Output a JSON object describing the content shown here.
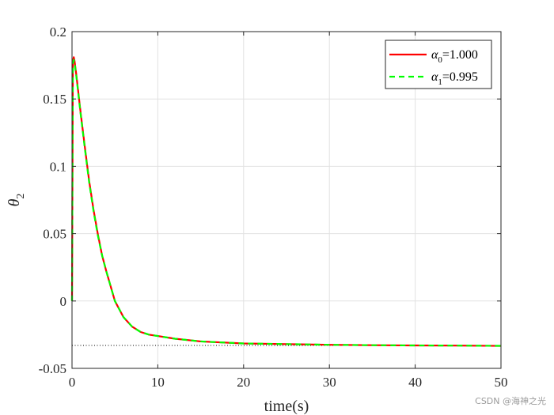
{
  "chart_data": {
    "type": "line",
    "title": "",
    "xlabel": "time(s)",
    "ylabel": "θ",
    "ylabel_sub": "2",
    "xlim": [
      0,
      50
    ],
    "ylim": [
      -0.05,
      0.2
    ],
    "xticks": [
      0,
      10,
      20,
      30,
      40,
      50
    ],
    "yticks": [
      -0.05,
      0,
      0.05,
      0.1,
      0.15,
      0.2
    ],
    "xtick_labels": [
      "0",
      "10",
      "20",
      "30",
      "40",
      "50"
    ],
    "ytick_labels": [
      "-0.05",
      "0",
      "0.05",
      "0.1",
      "0.15",
      "0.2"
    ],
    "grid": true,
    "legend_position": "top-right",
    "reference_line": {
      "y": -0.033,
      "style": "dotted",
      "color": "#000000"
    },
    "series": [
      {
        "name": "α",
        "sub": "0",
        "suffix": "=1.000",
        "color": "#ff0000",
        "style": "solid",
        "x": [
          0,
          0.1,
          0.2,
          0.3,
          0.5,
          1,
          1.5,
          2,
          2.5,
          3,
          3.5,
          4,
          5,
          6,
          7,
          8,
          9,
          10,
          12,
          15,
          20,
          25,
          30,
          35,
          40,
          45,
          50
        ],
        "y": [
          0,
          0.178,
          0.181,
          0.178,
          0.168,
          0.14,
          0.114,
          0.089,
          0.068,
          0.05,
          0.034,
          0.022,
          0.0,
          -0.012,
          -0.019,
          -0.023,
          -0.025,
          -0.026,
          -0.028,
          -0.03,
          -0.0315,
          -0.032,
          -0.0325,
          -0.0328,
          -0.033,
          -0.0331,
          -0.0333
        ]
      },
      {
        "name": "α",
        "sub": "1",
        "suffix": "=0.995",
        "color": "#00ff00",
        "style": "dashed",
        "x": [
          0,
          0.1,
          0.2,
          0.3,
          0.5,
          1,
          1.5,
          2,
          2.5,
          3,
          3.5,
          4,
          5,
          6,
          7,
          8,
          9,
          10,
          12,
          15,
          20,
          25,
          30,
          35,
          40,
          45,
          50
        ],
        "y": [
          0,
          0.176,
          0.179,
          0.177,
          0.167,
          0.139,
          0.113,
          0.088,
          0.067,
          0.049,
          0.034,
          0.022,
          0.0,
          -0.012,
          -0.019,
          -0.023,
          -0.025,
          -0.026,
          -0.028,
          -0.03,
          -0.0315,
          -0.032,
          -0.0325,
          -0.0328,
          -0.033,
          -0.0331,
          -0.0333
        ]
      }
    ]
  },
  "watermark": "CSDN @海神之光"
}
